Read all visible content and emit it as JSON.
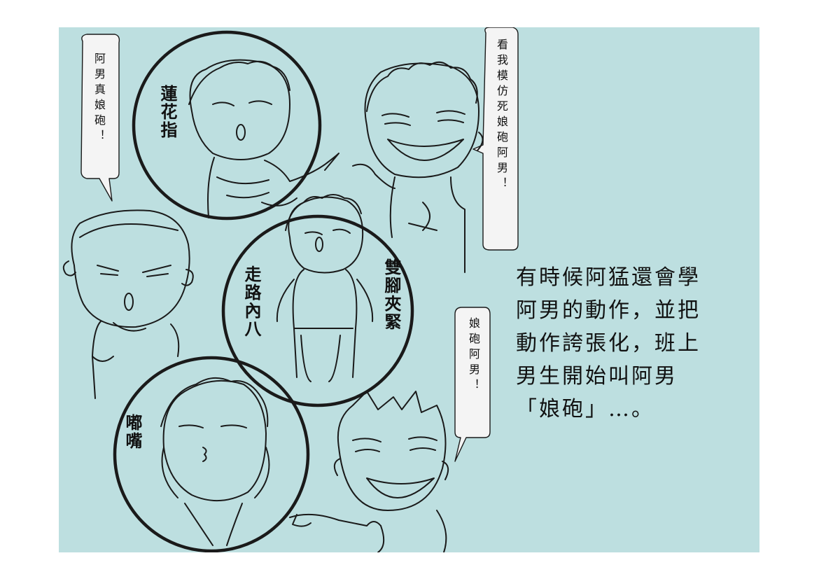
{
  "bubbles": {
    "left": "阿男真娘砲！",
    "top_right": "看我模仿死娘砲阿男！",
    "bottom_right": "娘砲阿男！"
  },
  "circle_labels": {
    "lotus": "蓮花指",
    "walk": "走路內八",
    "legs": "雙腳夾緊",
    "pout": "嘟嘴"
  },
  "narration": {
    "lines": [
      "有時候阿猛還會學",
      "阿男的動作，並把",
      "動作誇張化，班上",
      "男生開始叫阿男",
      "「娘砲」…。"
    ]
  },
  "colors": {
    "panel_bg": "#bddfe0",
    "bubble_bg": "#f4f4f4",
    "ink": "#1a1a1a"
  }
}
